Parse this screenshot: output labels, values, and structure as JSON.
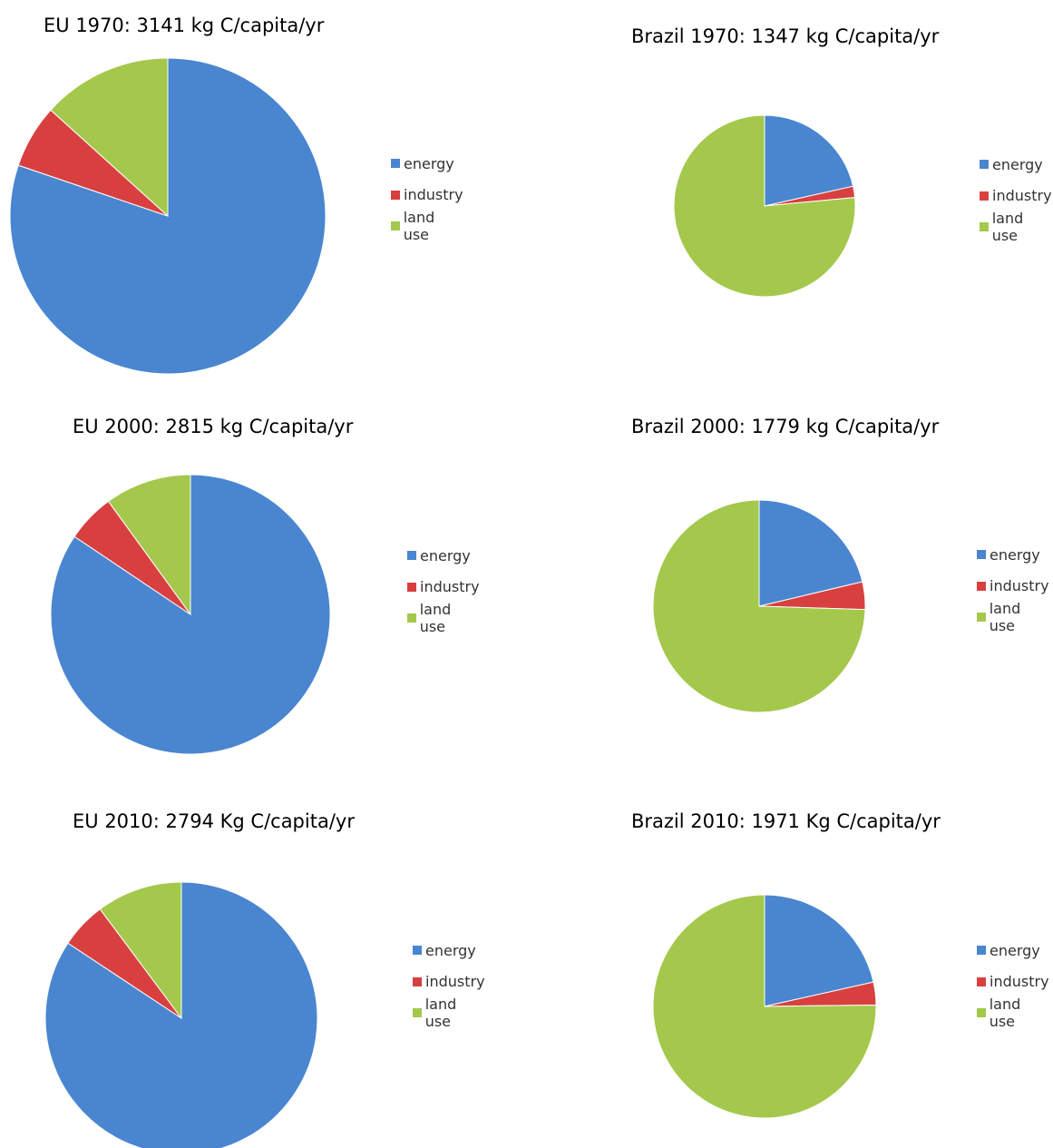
{
  "colors": {
    "energy": "#4a86d0",
    "industry": "#d84040",
    "land_use": "#a4c84c"
  },
  "chart_data": [
    {
      "type": "pie",
      "title": "EU 1970: 3141 kg C/capita/yr",
      "categories": [
        "energy",
        "industry",
        "land use"
      ],
      "values": [
        80.2,
        6.5,
        13.3
      ],
      "legend": "right"
    },
    {
      "type": "pie",
      "title": "Brazil 1970: 1347 kg C/capita/yr",
      "categories": [
        "energy",
        "industry",
        "land use"
      ],
      "values": [
        21.5,
        2.0,
        76.5
      ],
      "legend": "right"
    },
    {
      "type": "pie",
      "title": "EU 2000: 2815 kg C/capita/yr",
      "categories": [
        "energy",
        "industry",
        "land use"
      ],
      "values": [
        84.4,
        5.6,
        10.0
      ],
      "legend": "right"
    },
    {
      "type": "pie",
      "title": "Brazil 2000: 1779 kg C/capita/yr",
      "categories": [
        "energy",
        "industry",
        "land use"
      ],
      "values": [
        21.3,
        4.2,
        74.5
      ],
      "legend": "right"
    },
    {
      "type": "pie",
      "title": "EU 2010: 2794 Kg C/capita/yr",
      "categories": [
        "energy",
        "industry",
        "land use"
      ],
      "values": [
        84.3,
        5.5,
        10.2
      ],
      "legend": "right"
    },
    {
      "type": "pie",
      "title": "Brazil 2010: 1971 Kg C/capita/yr",
      "categories": [
        "energy",
        "industry",
        "land use"
      ],
      "values": [
        21.5,
        3.3,
        75.2
      ],
      "legend": "right"
    }
  ]
}
